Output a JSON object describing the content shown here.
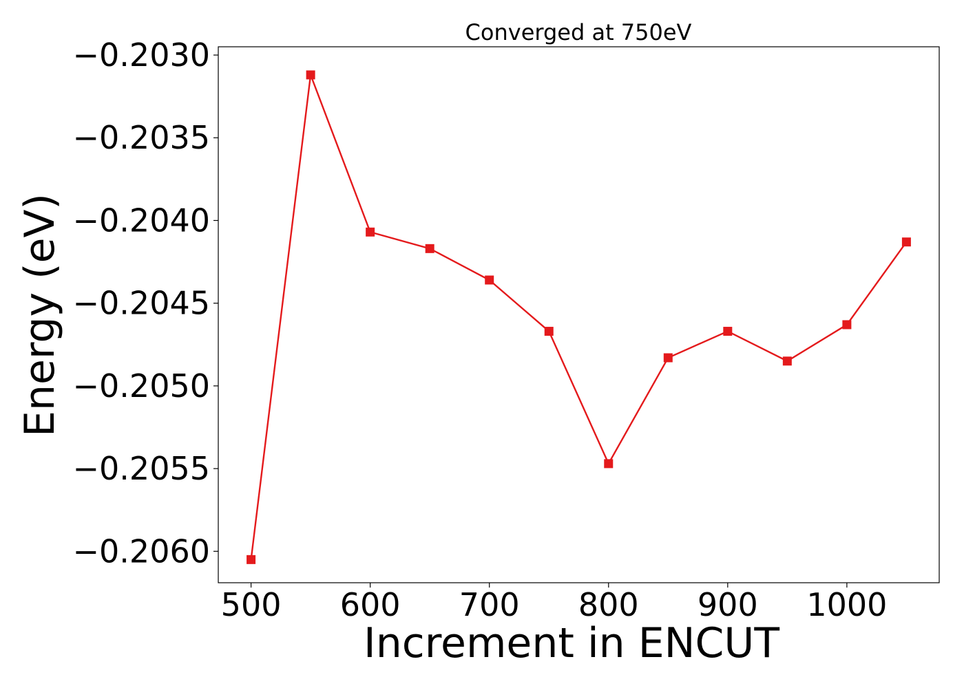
{
  "chart_data": {
    "type": "line",
    "title": "Converged at 750eV",
    "xlabel": "Increment in ENCUT",
    "ylabel": "Energy (eV)",
    "xlim": [
      472.5,
      1077.5
    ],
    "ylim": [
      -0.20619,
      -0.20295
    ],
    "xticks": [
      500,
      600,
      700,
      800,
      900,
      1000
    ],
    "xtick_labels": [
      "500",
      "600",
      "700",
      "800",
      "900",
      "1000"
    ],
    "yticks": [
      -0.203,
      -0.2035,
      -0.204,
      -0.2045,
      -0.205,
      -0.2055,
      -0.206
    ],
    "ytick_labels": [
      "−0.2030",
      "−0.2035",
      "−0.2040",
      "−0.2045",
      "−0.2050",
      "−0.2055",
      "−0.2060"
    ],
    "grid": false,
    "series": [
      {
        "color": "#e41a1c",
        "marker": "square",
        "x": [
          500,
          550,
          600,
          650,
          700,
          750,
          800,
          850,
          900,
          950,
          1000,
          1050
        ],
        "y": [
          -0.20605,
          -0.20312,
          -0.20407,
          -0.20417,
          -0.20436,
          -0.20467,
          -0.20547,
          -0.20483,
          -0.20467,
          -0.20485,
          -0.20463,
          -0.20413
        ]
      }
    ]
  }
}
